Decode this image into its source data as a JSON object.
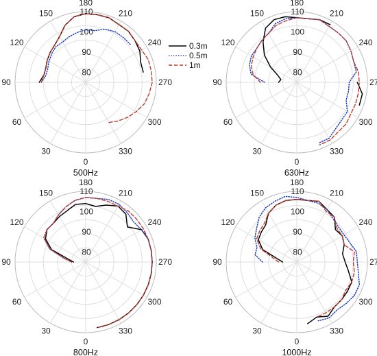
{
  "chart_data": {
    "type": "polar-line",
    "angle_ticks": [
      "0",
      "30",
      "60",
      "90",
      "120",
      "150",
      "180",
      "210",
      "240",
      "270",
      "300",
      "330"
    ],
    "radial_ticks": [
      "80",
      "90",
      "100",
      "110"
    ],
    "rlim": [
      75,
      110
    ],
    "grid": true,
    "legend_position": "top-center",
    "legend": [
      "0.3m",
      "0.5m",
      "1m"
    ],
    "series_styles": [
      {
        "name": "0.3m",
        "color": "#000000",
        "dash": "solid"
      },
      {
        "name": "0.5m",
        "color": "#1f3fbf",
        "dash": "dotted"
      },
      {
        "name": "1m",
        "color": "#c0392b",
        "dash": "dashed"
      }
    ],
    "panels": [
      {
        "caption": "500Hz",
        "theta": [
          0,
          10,
          20,
          30,
          40,
          50,
          60,
          70,
          80,
          90,
          100,
          110,
          120,
          130,
          140,
          150,
          160,
          170,
          180,
          190,
          200,
          210,
          220,
          230,
          240,
          250,
          260,
          270,
          280,
          290,
          300,
          310,
          320,
          330,
          340,
          350
        ],
        "series": [
          {
            "name": "0.3m",
            "r": [
              null,
              null,
              null,
              null,
              null,
              null,
              null,
              null,
              null,
              98,
              96,
              96,
              97,
              98,
              99,
              101,
              105,
              108,
              109,
              109,
              109,
              108,
              108,
              107,
              106,
              104,
              104,
              null,
              null,
              null,
              99,
              null,
              98,
              null,
              null,
              null
            ]
          },
          {
            "name": "0.5m",
            "r": [
              null,
              null,
              null,
              null,
              null,
              null,
              null,
              null,
              null,
              97,
              95,
              95,
              96,
              97,
              98,
              98,
              99,
              100,
              101,
              101,
              103,
              104,
              104,
              104,
              null,
              null,
              null,
              null,
              null,
              null,
              null,
              null,
              null,
              null,
              null,
              null
            ]
          },
          {
            "name": "1m",
            "r": [
              null,
              null,
              null,
              null,
              null,
              null,
              null,
              null,
              null,
              97,
              96,
              96,
              97,
              98,
              99,
              101,
              105,
              108,
              109,
              109,
              109,
              108,
              108,
              107,
              107,
              108,
              108,
              108,
              107,
              106,
              104,
              102,
              100,
              98,
              null,
              null
            ]
          }
        ]
      },
      {
        "caption": "630Hz",
        "theta": [
          0,
          10,
          20,
          30,
          40,
          50,
          60,
          70,
          80,
          90,
          100,
          110,
          120,
          130,
          140,
          150,
          160,
          170,
          180,
          190,
          200,
          210,
          220,
          230,
          240,
          250,
          260,
          270,
          280,
          290,
          300,
          310,
          320,
          330,
          340,
          350
        ],
        "series": [
          {
            "name": "0.3m",
            "r": [
              null,
              null,
              null,
              null,
              null,
              null,
              null,
              null,
              null,
              84,
              83,
              85,
              90,
              96,
              101,
              106,
              108,
              108,
              107,
              107,
              108,
              108,
              null,
              null,
              null,
              null,
              null,
              105,
              108,
              108,
              null,
              null,
              null,
              null,
              null,
              null
            ]
          },
          {
            "name": "0.5m",
            "r": [
              null,
              null,
              null,
              null,
              null,
              null,
              null,
              null,
              null,
              91,
              98,
              100,
              101,
              101,
              102,
              103,
              106,
              107,
              107,
              107,
              108,
              107,
              107,
              107,
              106,
              105,
              105,
              101,
              101,
              101,
              104,
              104,
              105,
              107,
              107,
              null
            ]
          },
          {
            "name": "1m",
            "r": [
              null,
              null,
              null,
              null,
              null,
              null,
              null,
              null,
              null,
              93,
              97,
              99,
              100,
              101,
              102,
              103,
              105,
              106,
              107,
              107,
              108,
              107,
              107,
              107,
              106,
              105,
              106,
              106,
              106,
              106,
              106,
              107,
              107,
              108,
              108,
              null
            ]
          }
        ]
      },
      {
        "caption": "800Hz",
        "theta": [
          0,
          10,
          20,
          30,
          40,
          50,
          60,
          70,
          80,
          90,
          100,
          110,
          120,
          130,
          140,
          150,
          160,
          170,
          180,
          190,
          200,
          210,
          220,
          230,
          240,
          250,
          260,
          270,
          280,
          290,
          300,
          310,
          320,
          330,
          340,
          350
        ],
        "series": [
          {
            "name": "0.3m",
            "r": [
              null,
              null,
              null,
              null,
              null,
              null,
              null,
              null,
              null,
              81,
              84,
              93,
              98,
              100,
              100,
              101,
              102,
              104,
              104,
              103,
              105,
              107,
              106,
              102,
              107,
              108,
              108,
              108,
              108,
              108,
              108,
              108,
              108,
              108,
              108,
              108
            ]
          },
          {
            "name": "0.5m",
            "r": [
              null,
              null,
              null,
              null,
              null,
              null,
              null,
              null,
              null,
              82,
              86,
              94,
              99,
              100,
              100,
              102,
              104,
              106,
              107,
              107,
              108,
              108,
              107,
              106,
              107,
              108,
              108,
              108,
              108,
              null,
              null,
              null,
              null,
              null,
              null,
              null
            ]
          },
          {
            "name": "1m",
            "r": [
              null,
              null,
              null,
              null,
              null,
              null,
              null,
              null,
              null,
              82,
              86,
              94,
              99,
              100,
              100,
              102,
              104,
              106,
              107,
              107,
              107,
              107,
              108,
              108,
              108,
              108,
              108,
              108,
              108,
              108,
              108,
              108,
              108,
              108,
              108,
              108
            ]
          }
        ]
      },
      {
        "caption": "1000Hz",
        "theta": [
          0,
          10,
          20,
          30,
          40,
          50,
          60,
          70,
          80,
          90,
          100,
          110,
          120,
          130,
          140,
          150,
          160,
          170,
          180,
          190,
          200,
          210,
          220,
          230,
          240,
          250,
          260,
          270,
          280,
          290,
          300,
          310,
          320,
          330,
          340,
          350
        ],
        "series": [
          {
            "name": "0.3m",
            "r": [
              null,
              null,
              null,
              null,
              null,
              null,
              null,
              null,
              null,
              82,
              85,
              93,
              97,
              98,
              99,
              103,
              105,
              106,
              106,
              106,
              107,
              105,
              104,
              100,
              101,
              100,
              98,
              99,
              101,
              104,
              104,
              104,
              104,
              106,
              104,
              106
            ]
          },
          {
            "name": "0.5m",
            "r": [
              null,
              null,
              null,
              null,
              null,
              null,
              null,
              null,
              null,
              92,
              96,
              96,
              99,
              101,
              104,
              106,
              107,
              108,
              107,
              106,
              106,
              105,
              103,
              102,
              102,
              103,
              105,
              105,
              106,
              108,
              108,
              107,
              106,
              107,
              106,
              null
            ]
          },
          {
            "name": "1m",
            "r": [
              null,
              null,
              null,
              null,
              null,
              null,
              null,
              null,
              null,
              84,
              87,
              94,
              98,
              99,
              100,
              103,
              105,
              106,
              106,
              106,
              107,
              104,
              104,
              101,
              101,
              100,
              104,
              103,
              104,
              104,
              103,
              104,
              104,
              104,
              104,
              null
            ]
          }
        ]
      }
    ]
  }
}
